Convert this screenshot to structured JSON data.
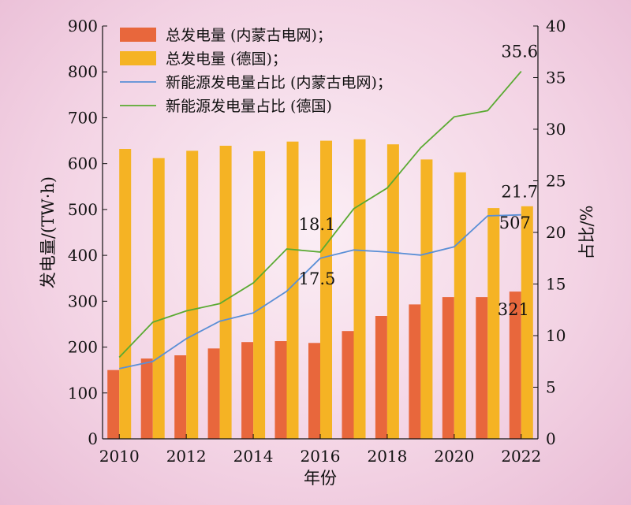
{
  "chart_data": {
    "type": "bar",
    "xlabel": "年份",
    "ylabel_left": "发电量/(TW·h)",
    "ylabel_right": "占比/%",
    "ylim_left": [
      0,
      900
    ],
    "ylim_right": [
      0,
      40
    ],
    "yticks_left": [
      "0",
      "100",
      "200",
      "300",
      "400",
      "500",
      "600",
      "700",
      "800",
      "900"
    ],
    "yticks_right": [
      "0",
      "5",
      "10",
      "15",
      "20",
      "25",
      "30",
      "35",
      "40"
    ],
    "categories": [
      "2010",
      "2011",
      "2012",
      "2013",
      "2014",
      "2015",
      "2016",
      "2017",
      "2018",
      "2019",
      "2020",
      "2021",
      "2022"
    ],
    "xtick_labels": [
      "2010",
      "",
      "2012",
      "",
      "2014",
      "",
      "2016",
      "",
      "2018",
      "",
      "2020",
      "",
      "2022"
    ],
    "legend_position": "top-left",
    "grid": false,
    "series": [
      {
        "name": "总发电量 (内蒙古电网)；",
        "kind": "bar",
        "axis": "left",
        "color": "#e8673c",
        "values": [
          150,
          175,
          182,
          197,
          211,
          213,
          209,
          235,
          268,
          293,
          309,
          309,
          321
        ]
      },
      {
        "name": "总发电量 (德国)；",
        "kind": "bar",
        "axis": "left",
        "color": "#f5b324",
        "values": [
          632,
          612,
          628,
          639,
          627,
          648,
          650,
          653,
          642,
          609,
          581,
          503,
          507
        ]
      },
      {
        "name": "新能源发电量占比 (内蒙古电网)；",
        "kind": "line",
        "axis": "right",
        "color": "#5a8fd6",
        "values": [
          6.8,
          7.5,
          9.7,
          11.4,
          12.2,
          14.3,
          17.5,
          18.3,
          18.1,
          17.8,
          18.6,
          21.6,
          21.7
        ]
      },
      {
        "name": "新能源发电量占比 (德国)",
        "kind": "line",
        "axis": "right",
        "color": "#5aaa32",
        "values": [
          7.9,
          11.3,
          12.4,
          13.1,
          15.1,
          18.4,
          18.1,
          22.3,
          24.3,
          28.2,
          31.2,
          31.8,
          35.6
        ]
      }
    ],
    "data_labels": [
      "35.6",
      "21.7",
      "507",
      "18.1",
      "17.5",
      "321"
    ]
  }
}
